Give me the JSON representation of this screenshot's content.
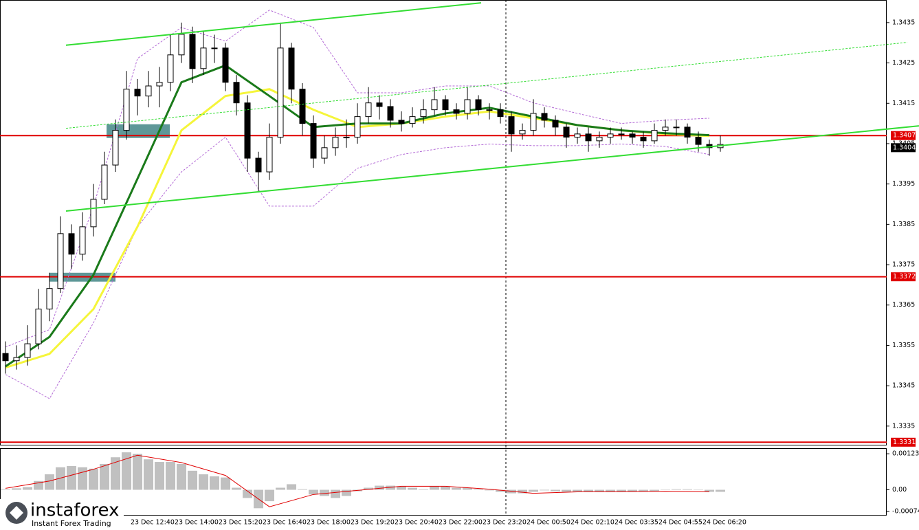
{
  "logo": {
    "name": "instaforex",
    "tagline": "Instant Forex Trading"
  },
  "chart_data": [
    {
      "type": "candlestick",
      "ylim": [
        1.33302,
        1.34406
      ],
      "yticks": [
        1.3435,
        1.3425,
        1.3415,
        1.3405,
        1.3395,
        1.3385,
        1.3375,
        1.3365,
        1.3355,
        1.3345,
        1.3335
      ],
      "x_labels": [
        "23 Dec 12:40",
        "23 Dec 14:00",
        "23 Dec 15:20",
        "23 Dec 16:40",
        "23 Dec 18:00",
        "23 Dec 19:20",
        "23 Dec 20:40",
        "23 Dec 22:00",
        "23 Dec 23:20",
        "24 Dec 00:50",
        "24 Dec 02:10",
        "24 Dec 03:35",
        "24 Dec 04:55",
        "24 Dec 06:20"
      ],
      "open": [
        1.3353,
        1.33512,
        1.3352,
        1.33554,
        1.3364,
        1.33691,
        1.33827,
        1.33776,
        1.33844,
        1.33912,
        1.33997,
        1.34083,
        1.34185,
        1.34168,
        1.34193,
        1.34202,
        1.3427,
        1.34321,
        1.34236,
        1.34287,
        1.34287,
        1.34202,
        1.34151,
        1.34014,
        1.3398,
        1.34066,
        1.34287,
        1.34185,
        1.341,
        1.34014,
        1.3404,
        1.34066,
        1.34066,
        1.34117,
        1.34151,
        1.34142,
        1.34108,
        1.341,
        1.34117,
        1.34134,
        1.34159,
        1.34134,
        1.34125,
        1.34159,
        1.34134,
        1.34134,
        1.34117,
        1.34074,
        1.34083,
        1.34125,
        1.34108,
        1.34091,
        1.34066,
        1.34074,
        1.34057,
        1.34066,
        1.34074,
        1.34074,
        1.34066,
        1.34057,
        1.34083,
        1.34091,
        1.34091,
        1.34066,
        1.34048,
        1.3404
      ],
      "high": [
        1.3356,
        1.3355,
        1.336,
        1.3369,
        1.3373,
        1.3387,
        1.3385,
        1.3388,
        1.3395,
        1.3403,
        1.3411,
        1.3423,
        1.3421,
        1.3423,
        1.3424,
        1.3432,
        1.3435,
        1.3434,
        1.3433,
        1.3432,
        1.343,
        1.3422,
        1.3417,
        1.3403,
        1.341,
        1.3435,
        1.343,
        1.342,
        1.3412,
        1.3407,
        1.3409,
        1.3411,
        1.3415,
        1.3419,
        1.3417,
        1.3416,
        1.3413,
        1.3414,
        1.3416,
        1.3419,
        1.3417,
        1.3415,
        1.3419,
        1.3417,
        1.3415,
        1.3415,
        1.3413,
        1.341,
        1.3416,
        1.3414,
        1.3412,
        1.341,
        1.3409,
        1.3409,
        1.3408,
        1.3409,
        1.3409,
        1.3408,
        1.3408,
        1.341,
        1.3411,
        1.3411,
        1.341,
        1.3408,
        1.3406,
        1.3407
      ],
      "low": [
        1.3348,
        1.3349,
        1.335,
        1.3354,
        1.3361,
        1.3368,
        1.3374,
        1.3376,
        1.3382,
        1.339,
        1.3398,
        1.3406,
        1.3412,
        1.3414,
        1.3414,
        1.3418,
        1.3425,
        1.342,
        1.3422,
        1.3425,
        1.3418,
        1.3412,
        1.3398,
        1.3393,
        1.3396,
        1.3405,
        1.3415,
        1.3407,
        1.3399,
        1.34,
        1.3402,
        1.3404,
        1.3405,
        1.341,
        1.3411,
        1.3409,
        1.3408,
        1.3409,
        1.341,
        1.3412,
        1.3412,
        1.3411,
        1.3411,
        1.3412,
        1.3411,
        1.341,
        1.3403,
        1.3406,
        1.3407,
        1.3409,
        1.3407,
        1.3404,
        1.3405,
        1.3403,
        1.3404,
        1.3405,
        1.3406,
        1.3405,
        1.3404,
        1.3405,
        1.3407,
        1.3407,
        1.3405,
        1.3403,
        1.3402,
        1.3403
      ],
      "close": [
        1.33512,
        1.3352,
        1.33554,
        1.3364,
        1.33691,
        1.33827,
        1.33776,
        1.33844,
        1.33912,
        1.33997,
        1.34083,
        1.34185,
        1.34168,
        1.34193,
        1.34202,
        1.3427,
        1.34321,
        1.34236,
        1.34287,
        1.34287,
        1.34202,
        1.34151,
        1.34014,
        1.3398,
        1.34066,
        1.34287,
        1.34185,
        1.341,
        1.34014,
        1.3404,
        1.34066,
        1.34066,
        1.34117,
        1.34151,
        1.34142,
        1.34108,
        1.341,
        1.34117,
        1.34134,
        1.34159,
        1.34134,
        1.34125,
        1.34159,
        1.34134,
        1.34134,
        1.34117,
        1.34074,
        1.34083,
        1.34125,
        1.34108,
        1.34091,
        1.34066,
        1.34074,
        1.34057,
        1.34066,
        1.34074,
        1.34074,
        1.34066,
        1.34057,
        1.34083,
        1.34091,
        1.34091,
        1.34066,
        1.34048,
        1.3404,
        1.34048
      ],
      "indicators": [
        {
          "color": "#b36ad6",
          "style": "dashed",
          "x": [
            0,
            4,
            8,
            12,
            16,
            20,
            24,
            28,
            32,
            36,
            40,
            44,
            48,
            52,
            56,
            60,
            64
          ],
          "values": [
            1.33546,
            1.33589,
            1.33895,
            1.34261,
            1.34338,
            1.34304,
            1.34381,
            1.34338,
            1.34176,
            1.34176,
            1.34193,
            1.34193,
            1.34151,
            1.34125,
            1.341,
            1.34108,
            1.34113
          ]
        },
        {
          "color": "#b36ad6",
          "style": "dashed",
          "x": [
            0,
            4,
            8,
            12,
            16,
            20,
            24,
            28,
            32,
            36,
            40,
            44,
            48,
            52,
            56,
            60,
            64
          ],
          "values": [
            1.33478,
            1.33418,
            1.33606,
            1.33844,
            1.3398,
            1.34066,
            1.33895,
            1.33895,
            1.33989,
            1.34023,
            1.3404,
            1.34049,
            1.34045,
            1.34045,
            1.34049,
            1.34043,
            1.34023
          ]
        },
        {
          "color": "#f5f53a",
          "style": "solid",
          "x": [
            0,
            4,
            8,
            12,
            16,
            20,
            24,
            28,
            32,
            36,
            40,
            44,
            48,
            52,
            56,
            60,
            64
          ],
          "values": [
            1.33495,
            1.33529,
            1.3364,
            1.33844,
            1.34083,
            1.34168,
            1.34185,
            1.34134,
            1.34091,
            1.341,
            1.34117,
            1.3413,
            1.34113,
            1.34096,
            1.34083,
            1.34074,
            1.34069
          ]
        },
        {
          "color": "#1a7a1a",
          "style": "solid",
          "x": [
            0,
            4,
            8,
            12,
            16,
            20,
            24,
            28,
            32,
            36,
            40,
            44,
            48,
            52,
            56,
            60,
            64
          ],
          "values": [
            1.33498,
            1.33571,
            1.33725,
            1.33963,
            1.34202,
            1.34244,
            1.34168,
            1.34091,
            1.341,
            1.341,
            1.34125,
            1.34139,
            1.34117,
            1.34096,
            1.34083,
            1.34076,
            1.34071
          ]
        }
      ],
      "trendlines": [
        {
          "color": "#33dd33",
          "style": "solid",
          "x": [
            5.5,
            43.25
          ],
          "values": [
            1.34294,
            1.34399
          ]
        },
        {
          "color": "#33dd33",
          "style": "solid",
          "x": [
            5.5,
            83.06
          ],
          "values": [
            1.33883,
            1.34094
          ]
        },
        {
          "color": "#33dd33",
          "style": "dashed",
          "x": [
            5.5,
            82
          ],
          "values": [
            1.34088,
            1.34301
          ]
        }
      ],
      "zones": [
        {
          "color": "#5e9898",
          "x": [
            9.19,
            14.94
          ],
          "values": [
            1.34098,
            1.34064
          ]
        },
        {
          "color": "#5e9898",
          "x": [
            4,
            10
          ],
          "values": [
            1.3373,
            1.33708
          ]
        }
      ],
      "levels": [
        1.3407,
        1.3372,
        1.3331
      ],
      "level_color": "#e00000",
      "last_price": 1.3404,
      "separator_x": 45.5
    },
    {
      "type": "bar",
      "ylim": [
        -0.00088,
        0.00142
      ],
      "yticks": [
        0.00123,
        {
          "value": 0,
          "label": "0.00"
        },
        -0.00074
      ],
      "color": "#c0c0c0",
      "values": [
        2e-05,
        5e-05,
        9e-05,
        0.0003,
        0.00053,
        0.00077,
        0.00081,
        0.00077,
        0.00072,
        0.00088,
        0.00111,
        0.00128,
        0.00123,
        0.00104,
        0.00095,
        0.00095,
        0.00088,
        0.00065,
        0.00053,
        0.00046,
        0.00042,
        7e-05,
        -0.00028,
        -0.00063,
        -0.00039,
        7e-05,
        0.00019,
        2e-05,
        -0.00016,
        -0.00021,
        -0.00028,
        -0.00021,
        -5e-05,
        7e-05,
        0.00014,
        0.00014,
        0.00012,
        7e-05,
        2e-05,
        0.00012,
        0.00012,
        7e-05,
        7e-05,
        2e-05,
        -2e-05,
        -7e-05,
        -0.00012,
        -0.00012,
        -7e-05,
        -2e-05,
        -5e-05,
        -7e-05,
        -7e-05,
        -7e-05,
        -7e-05,
        -7e-05,
        -7e-05,
        -7e-05,
        -7e-05,
        -5e-05,
        0,
        2e-05,
        2e-05,
        0,
        -7e-05,
        -7e-05
      ],
      "signal": {
        "color": "#e00000",
        "x": [
          0,
          4,
          8,
          12,
          16,
          20,
          24,
          28,
          32,
          36,
          40,
          44,
          48,
          52,
          56,
          60,
          64
        ],
        "values": [
          5e-05,
          0.0003,
          0.0007,
          0.00118,
          0.00093,
          0.00049,
          -0.00058,
          -0.00016,
          -2e-05,
          0.00012,
          0.00012,
          2e-05,
          -0.00012,
          -7e-05,
          -7e-05,
          -5e-05,
          -7e-05
        ]
      }
    }
  ]
}
